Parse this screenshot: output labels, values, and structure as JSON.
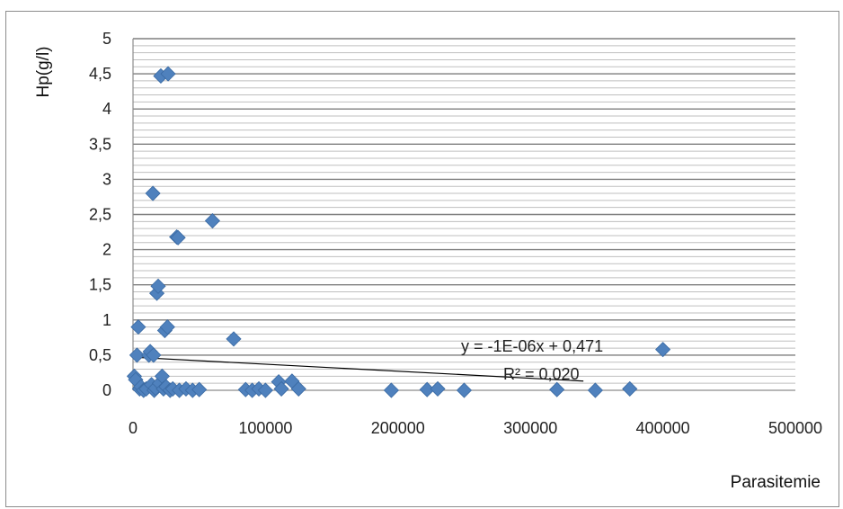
{
  "chart_data": {
    "type": "scatter",
    "xlabel": "Parasitemie",
    "ylabel": "Hp(g/l)",
    "xlim": [
      0,
      500000
    ],
    "ylim": [
      0,
      5
    ],
    "x_ticks": [
      "0",
      "100000",
      "200000",
      "300000",
      "400000",
      "500000"
    ],
    "y_ticks": [
      "0",
      "0,5",
      "1",
      "1,5",
      "2",
      "2,5",
      "3",
      "3,5",
      "4",
      "4,5",
      "5"
    ],
    "grid": true,
    "marker_color": "#4f81bd",
    "trendline": {
      "equation": "y = -1E-06x + 0,471",
      "r_squared": "R² = 0,020",
      "slope": -1e-06,
      "intercept": 0.471,
      "x_end": 340000,
      "color": "#000000"
    },
    "points": [
      [
        1000,
        0.2
      ],
      [
        2000,
        0.15
      ],
      [
        3000,
        0.5
      ],
      [
        4000,
        0.9
      ],
      [
        5000,
        0.02
      ],
      [
        6000,
        0.05
      ],
      [
        8000,
        0.0
      ],
      [
        10000,
        0.02
      ],
      [
        12000,
        0.5
      ],
      [
        13000,
        0.55
      ],
      [
        14000,
        0.08
      ],
      [
        15000,
        2.8
      ],
      [
        15500,
        0.5
      ],
      [
        16000,
        0.0
      ],
      [
        17000,
        0.03
      ],
      [
        18000,
        1.38
      ],
      [
        19000,
        1.48
      ],
      [
        20000,
        0.1
      ],
      [
        21000,
        4.47
      ],
      [
        22000,
        0.2
      ],
      [
        23000,
        0.02
      ],
      [
        24000,
        0.85
      ],
      [
        25000,
        0.05
      ],
      [
        26000,
        0.9
      ],
      [
        26500,
        4.5
      ],
      [
        28000,
        0.0
      ],
      [
        30000,
        0.02
      ],
      [
        33000,
        2.18
      ],
      [
        34000,
        2.17
      ],
      [
        35000,
        0.0
      ],
      [
        40000,
        0.02
      ],
      [
        45000,
        0.0
      ],
      [
        50000,
        0.01
      ],
      [
        60000,
        2.41
      ],
      [
        76000,
        0.73
      ],
      [
        85000,
        0.01
      ],
      [
        90000,
        0.0
      ],
      [
        95000,
        0.02
      ],
      [
        100000,
        0.0
      ],
      [
        110000,
        0.12
      ],
      [
        112000,
        0.02
      ],
      [
        120000,
        0.13
      ],
      [
        125000,
        0.02
      ],
      [
        195000,
        0.0
      ],
      [
        222000,
        0.01
      ],
      [
        230000,
        0.02
      ],
      [
        250000,
        0.0
      ],
      [
        320000,
        0.01
      ],
      [
        349000,
        0.0
      ],
      [
        375000,
        0.02
      ],
      [
        400000,
        0.58
      ]
    ]
  }
}
